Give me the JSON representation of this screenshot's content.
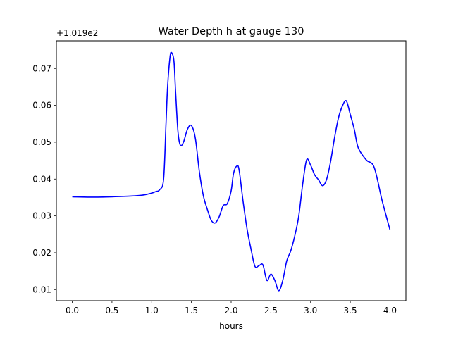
{
  "chart_data": {
    "type": "line",
    "title": "Water Depth h at gauge 130",
    "xlabel": "hours",
    "ylabel": "",
    "y_offset_label": "+1.019e2",
    "xlim": [
      -0.2,
      4.2
    ],
    "ylim": [
      0.007,
      0.0775
    ],
    "x_ticks": [
      0.0,
      0.5,
      1.0,
      1.5,
      2.0,
      2.5,
      3.0,
      3.5,
      4.0
    ],
    "x_tick_labels": [
      "0.0",
      "0.5",
      "1.0",
      "1.5",
      "2.0",
      "2.5",
      "3.0",
      "3.5",
      "4.0"
    ],
    "y_ticks": [
      0.01,
      0.02,
      0.03,
      0.04,
      0.05,
      0.06,
      0.07
    ],
    "y_tick_labels": [
      "0.01",
      "0.02",
      "0.03",
      "0.04",
      "0.05",
      "0.06",
      "0.07"
    ],
    "grid": false,
    "line_color": "#0000ff",
    "series": [
      {
        "x": [
          0.0,
          0.25,
          0.5,
          0.75,
          0.9,
          1.0,
          1.05,
          1.1,
          1.15,
          1.18,
          1.2,
          1.23,
          1.25,
          1.28,
          1.3,
          1.33,
          1.36,
          1.4,
          1.45,
          1.5,
          1.55,
          1.6,
          1.65,
          1.7,
          1.75,
          1.8,
          1.85,
          1.9,
          1.95,
          2.0,
          2.03,
          2.07,
          2.1,
          2.15,
          2.2,
          2.25,
          2.3,
          2.35,
          2.4,
          2.45,
          2.5,
          2.55,
          2.6,
          2.65,
          2.7,
          2.75,
          2.8,
          2.85,
          2.9,
          2.95,
          3.0,
          3.05,
          3.1,
          3.15,
          3.2,
          3.25,
          3.3,
          3.35,
          3.4,
          3.45,
          3.5,
          3.55,
          3.6,
          3.7,
          3.8,
          3.9,
          4.0
        ],
        "y": [
          0.0352,
          0.0351,
          0.0352,
          0.0354,
          0.0357,
          0.0362,
          0.0366,
          0.0371,
          0.04,
          0.055,
          0.065,
          0.073,
          0.0743,
          0.072,
          0.064,
          0.053,
          0.0492,
          0.05,
          0.0535,
          0.0545,
          0.051,
          0.042,
          0.0355,
          0.0318,
          0.0288,
          0.0281,
          0.0298,
          0.0328,
          0.0333,
          0.0368,
          0.0415,
          0.0435,
          0.0425,
          0.034,
          0.0265,
          0.021,
          0.0163,
          0.0165,
          0.0167,
          0.0125,
          0.0142,
          0.0125,
          0.0097,
          0.0125,
          0.0178,
          0.0205,
          0.0245,
          0.0298,
          0.0385,
          0.0452,
          0.0438,
          0.0412,
          0.0398,
          0.0382,
          0.0398,
          0.0445,
          0.051,
          0.0565,
          0.0598,
          0.0612,
          0.0575,
          0.0535,
          0.0485,
          0.0452,
          0.0432,
          0.0342,
          0.0262
        ]
      }
    ]
  }
}
